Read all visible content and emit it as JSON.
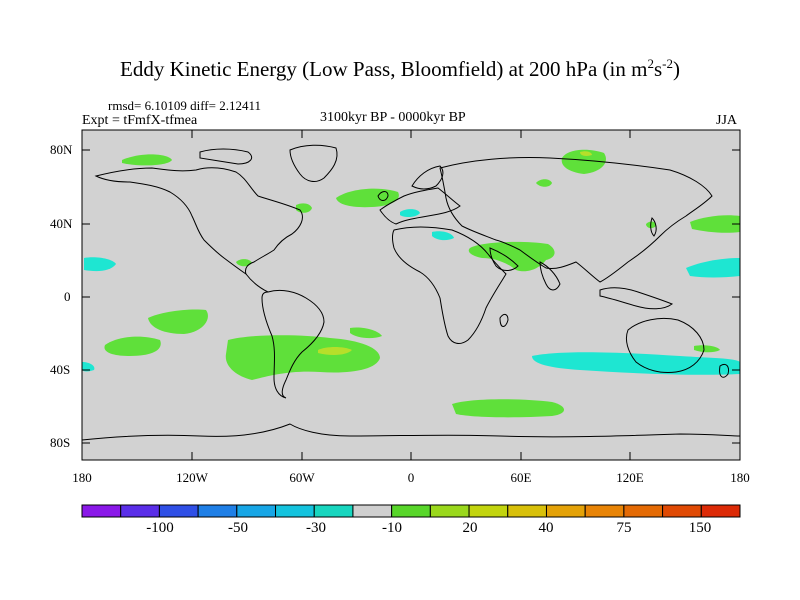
{
  "title": "Eddy Kinetic Energy (Low Pass, Bloomfield) at 200 hPa (in m",
  "title_sup1": "2",
  "title_mid": "s",
  "title_sup2": "-2",
  "title_end": ")",
  "stats": "rmsd= 6.10109 diff= 2.12411",
  "experiment": "Expt = tFmfX-tfmea",
  "period": "3100kyr BP - 0000kyr BP",
  "season": "JJA",
  "lat_labels": [
    "80N",
    "40N",
    "0",
    "40S",
    "80S"
  ],
  "lon_labels": [
    "180",
    "120W",
    "60W",
    "0",
    "60E",
    "120E",
    "180"
  ],
  "colorbar": {
    "colors": [
      "#8a18e8",
      "#5a2ee8",
      "#2f4fe6",
      "#1f7fe6",
      "#17a6e6",
      "#14c3de",
      "#18d6bf",
      "#cfcfcf",
      "#58d62a",
      "#9ad81c",
      "#c2d40e",
      "#d8c00a",
      "#e4a208",
      "#e88406",
      "#e46a04",
      "#e04a04",
      "#dc2a06"
    ],
    "labels": [
      "-100",
      "-50",
      "-30",
      "-10",
      "20",
      "40",
      "75",
      "150"
    ]
  },
  "palette": {
    "ocean": "#d2d2d2",
    "green": "#5fe03a",
    "yellowgreen": "#b6df2a",
    "cyan": "#1ee6d2",
    "coast": "#000000"
  }
}
